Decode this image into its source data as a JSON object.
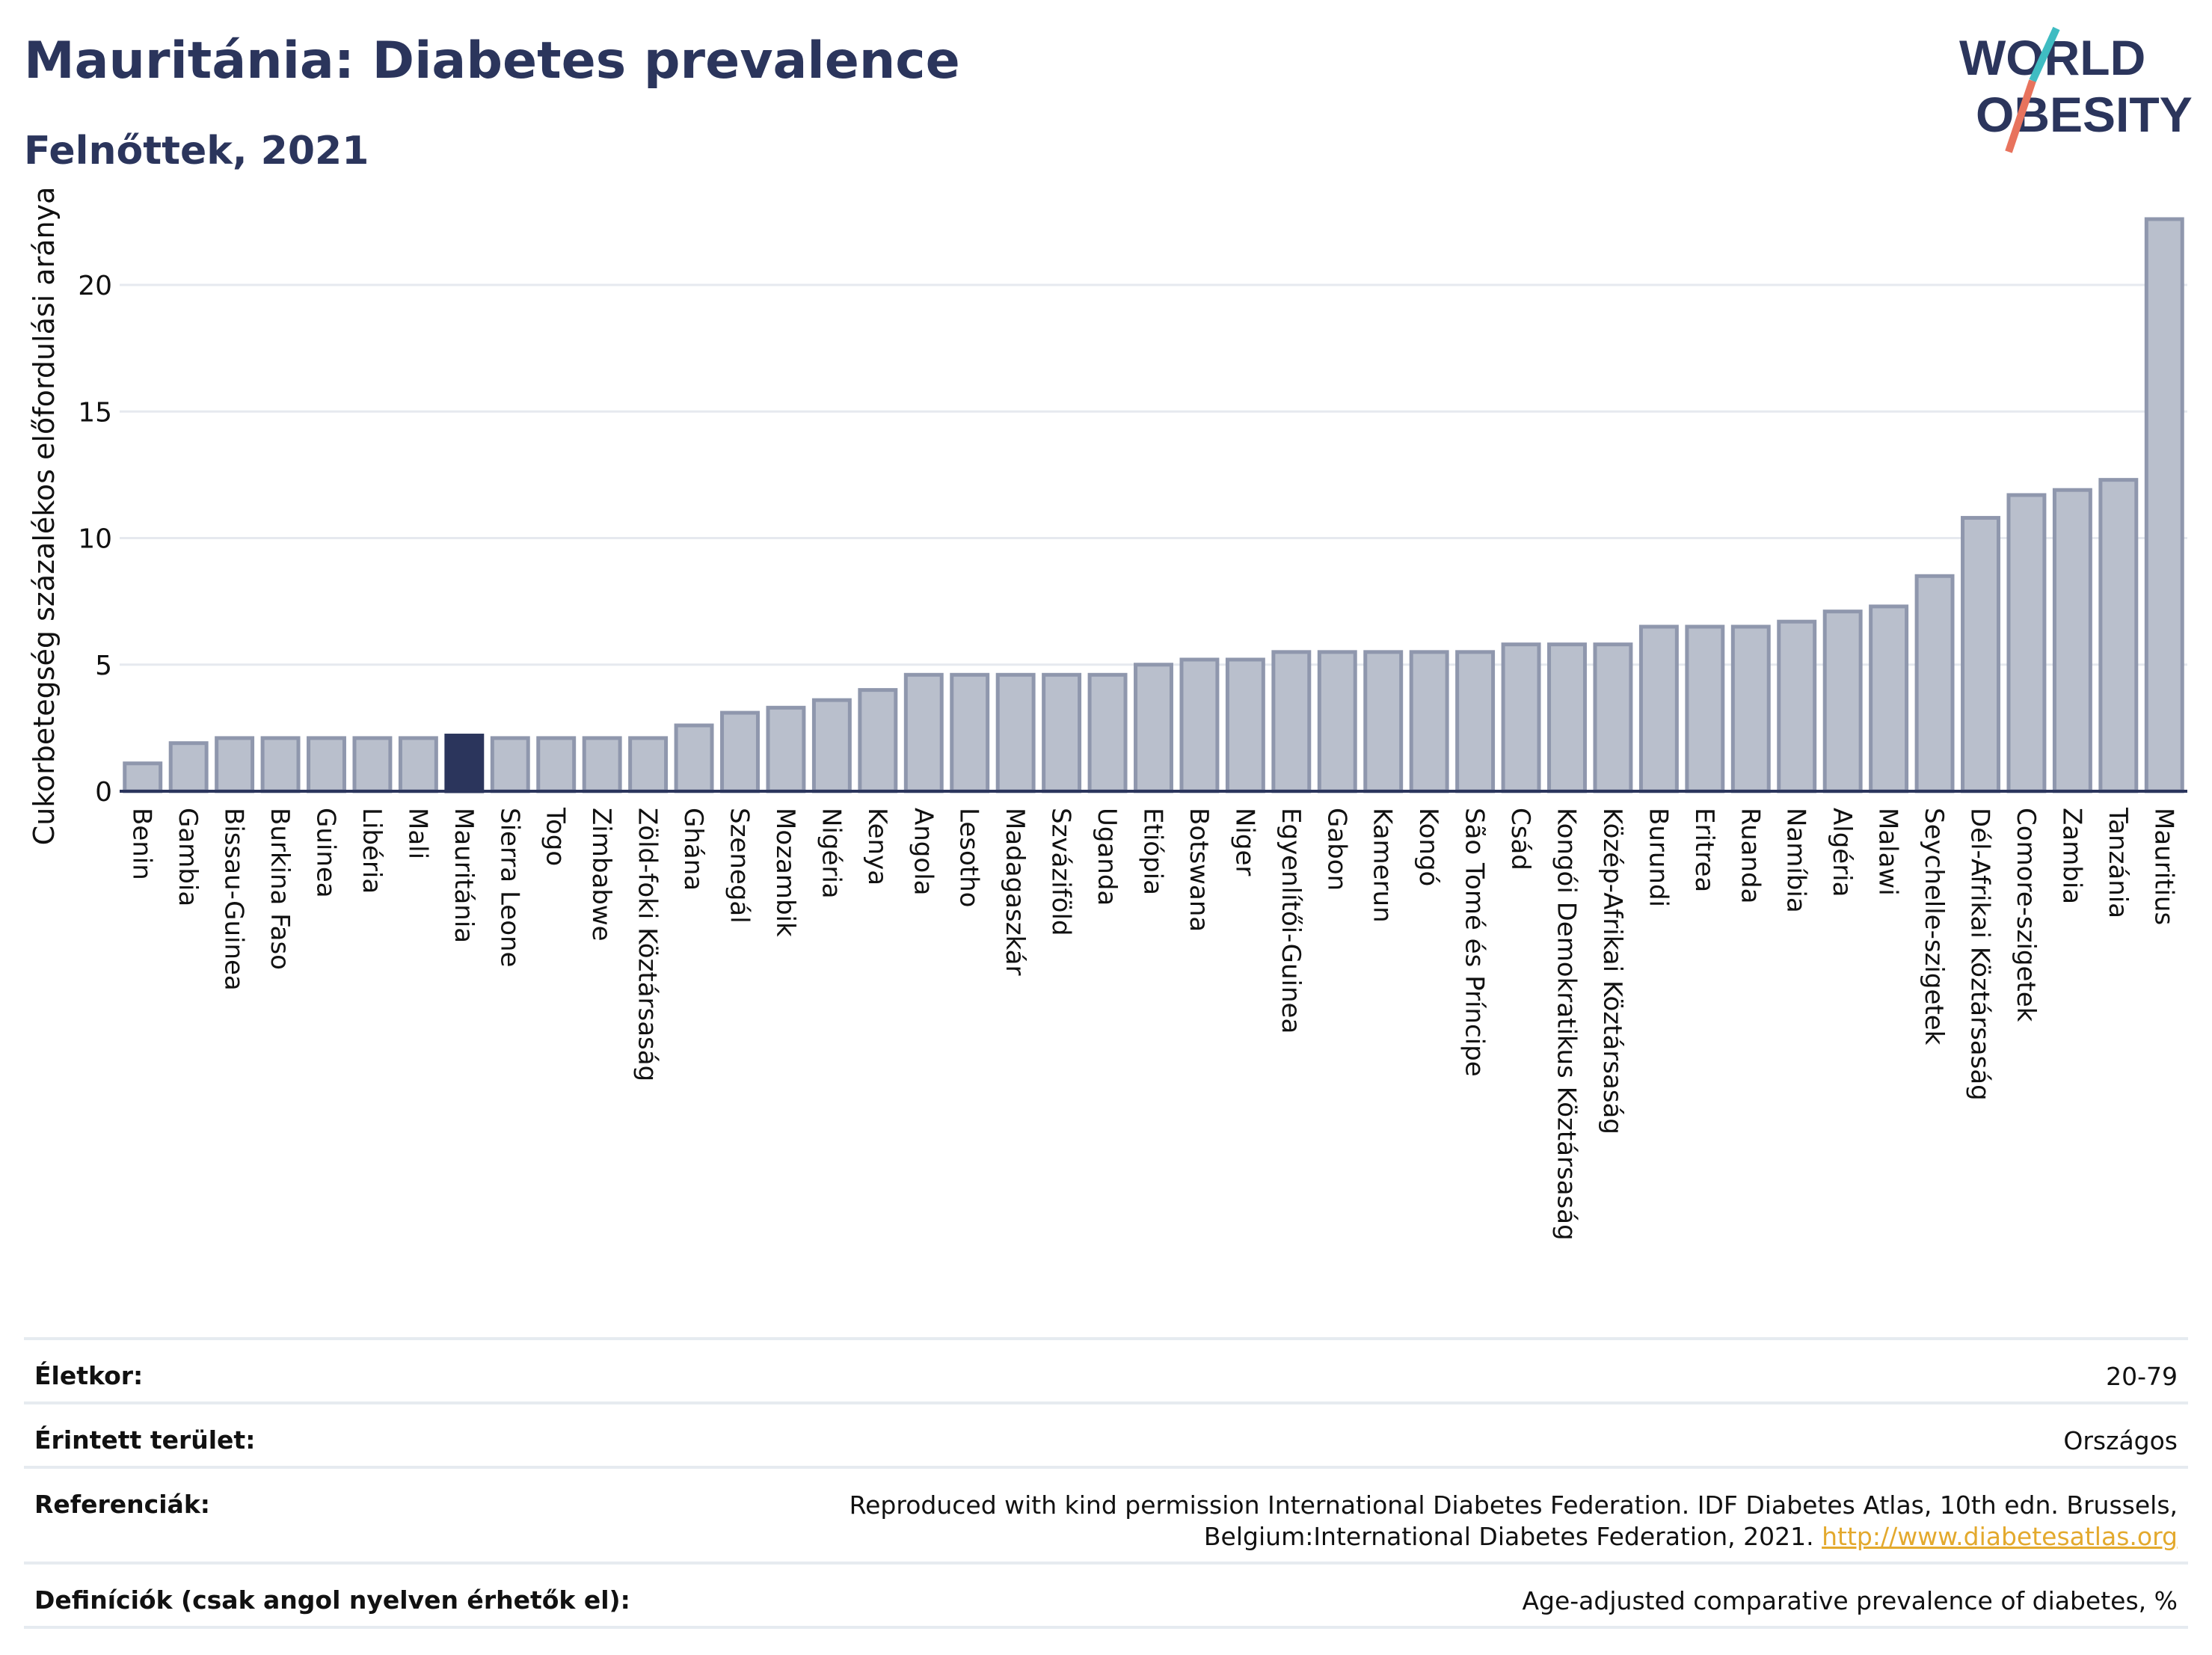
{
  "header": {
    "title": "Mauritánia: Diabetes prevalence",
    "subtitle": "Felnőttek, 2021"
  },
  "logo": {
    "line1": "WORLD",
    "line2": "OBESITY"
  },
  "chart_data": {
    "type": "bar",
    "ylabel": "Cukorbetegség százalékos előfordulási aránya",
    "ylim": [
      0,
      23
    ],
    "yticks": [
      0,
      5,
      10,
      15,
      20
    ],
    "grid": true,
    "highlight_category": "Mauritánia",
    "colors": {
      "bar": "#b9bfcc",
      "bar_stroke": "#8f97ad",
      "highlight": "#2b355c",
      "grid": "#e6e9ef",
      "axis": "#2b355c"
    },
    "categories": [
      "Benin",
      "Gambia",
      "Bissau-Guinea",
      "Burkina Faso",
      "Guinea",
      "Libéria",
      "Mali",
      "Mauritánia",
      "Sierra Leone",
      "Togo",
      "Zimbabwe",
      "Zöld-foki Köztársaság",
      "Ghána",
      "Szenegál",
      "Mozambik",
      "Nigéria",
      "Kenya",
      "Angola",
      "Lesotho",
      "Madagaszkár",
      "Szváziföld",
      "Uganda",
      "Etiópia",
      "Botswana",
      "Niger",
      "Egyenlítői-Guinea",
      "Gabon",
      "Kamerun",
      "Kongó",
      "São Tomé és Príncipe",
      "Csád",
      "Kongói Demokratikus Köztársaság",
      "Közép-Afrikai Köztársaság",
      "Burundi",
      "Eritrea",
      "Ruanda",
      "Namíbia",
      "Algéria",
      "Malawi",
      "Seychelle-szigetek",
      "Dél-Afrikai Köztársaság",
      "Comore-szigetek",
      "Zambia",
      "Tanzánia",
      "Mauritius"
    ],
    "values": [
      1.1,
      1.9,
      2.1,
      2.1,
      2.1,
      2.1,
      2.1,
      2.2,
      2.1,
      2.1,
      2.1,
      2.1,
      2.6,
      3.1,
      3.3,
      3.6,
      4.0,
      4.6,
      4.6,
      4.6,
      4.6,
      4.6,
      5.0,
      5.2,
      5.2,
      5.5,
      5.5,
      5.5,
      5.5,
      5.5,
      5.8,
      5.8,
      5.8,
      6.5,
      6.5,
      6.5,
      6.7,
      7.1,
      7.3,
      8.5,
      10.8,
      11.7,
      11.9,
      12.3,
      22.6
    ]
  },
  "info": [
    {
      "key": "Életkor:",
      "value": "20-79"
    },
    {
      "key": "Érintett terület:",
      "value": "Országos"
    },
    {
      "key": "Referenciák:",
      "value": "Reproduced with kind permission International Diabetes Federation.  IDF Diabetes Atlas, 10th edn. Brussels, Belgium:International Diabetes Federation, 2021.",
      "link": "http://www.diabetesatlas.org"
    },
    {
      "key": "Definíciók (csak angol nyelven érhetők el):",
      "value": "Age-adjusted comparative prevalence of diabetes, %"
    }
  ]
}
